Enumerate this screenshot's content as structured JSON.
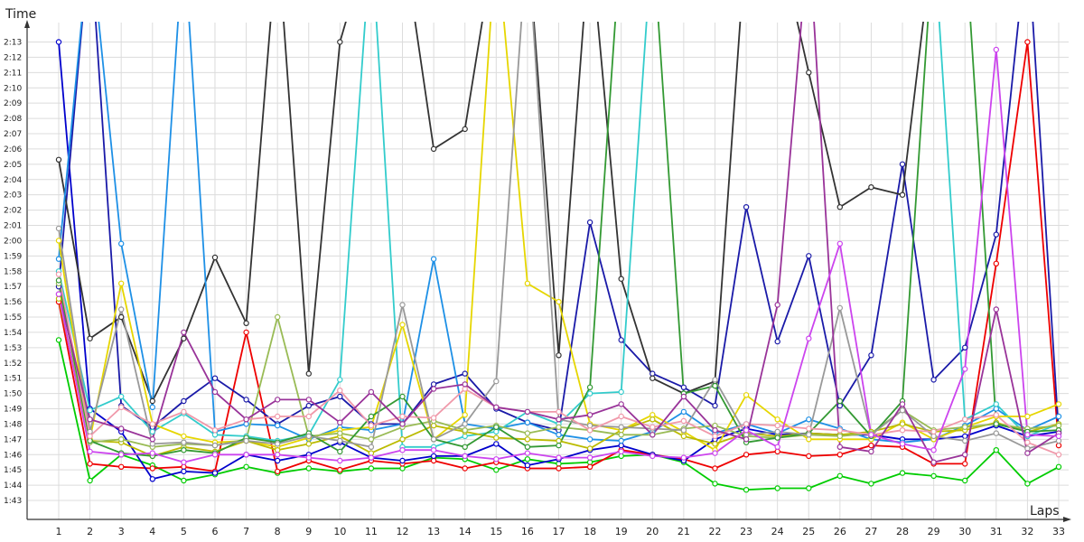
{
  "chart_data": {
    "type": "line",
    "xlabel": "Laps",
    "ylabel": "Time",
    "grid": true,
    "x_ticks": [
      "1",
      "2",
      "3",
      "4",
      "5",
      "6",
      "7",
      "8",
      "9",
      "10",
      "11",
      "12",
      "13",
      "14",
      "15",
      "16",
      "17",
      "18",
      "19",
      "20",
      "21",
      "22",
      "23",
      "24",
      "25",
      "26",
      "27",
      "28",
      "29",
      "30",
      "31",
      "32",
      "33"
    ],
    "y_ticks": [
      "1:43",
      "1:44",
      "1:45",
      "1:46",
      "1:47",
      "1:48",
      "1:49",
      "1:50",
      "1:51",
      "1:52",
      "1:53",
      "1:54",
      "1:55",
      "1:56",
      "1:57",
      "1:58",
      "1:59",
      "2:00",
      "2:01",
      "2:02",
      "2:03",
      "2:04",
      "2:05",
      "2:06",
      "2:07",
      "2:08",
      "2:09",
      "2:10",
      "2:11",
      "2:12",
      "2:13"
    ],
    "ylim_seconds": [
      103,
      135
    ],
    "x": [
      1,
      2,
      3,
      4,
      5,
      6,
      7,
      8,
      9,
      10,
      11,
      12,
      13,
      14,
      15,
      16,
      17,
      18,
      19,
      20,
      21,
      22,
      23,
      24,
      25,
      26,
      27,
      28,
      29,
      30,
      31,
      32,
      33
    ],
    "series": [
      {
        "color": "#00cc00",
        "values": [
          113.5,
          104.3,
          106.0,
          105.3,
          104.3,
          104.7,
          105.2,
          104.8,
          105.1,
          104.9,
          105.1,
          105.1,
          105.8,
          105.7,
          105.0,
          105.7,
          105.4,
          105.5,
          105.9,
          106.0,
          105.5,
          104.1,
          103.7,
          103.8,
          103.8,
          104.6,
          104.1,
          104.8,
          104.6,
          104.3,
          106.3,
          104.1,
          105.2
        ]
      },
      {
        "color": "#ee0000",
        "values": [
          116.0,
          105.4,
          105.2,
          105.1,
          105.2,
          104.9,
          114.0,
          104.9,
          105.6,
          105.0,
          105.6,
          105.4,
          105.6,
          105.1,
          105.5,
          105.1,
          105.1,
          105.2,
          106.3,
          106.0,
          105.7,
          105.1,
          106.0,
          106.2,
          105.9,
          106.0,
          106.6,
          106.5,
          105.4,
          105.4,
          118.5,
          133.0,
          106.6
        ]
      },
      {
        "color": "#0000cc",
        "values": [
          133.0,
          109.0,
          107.5,
          104.4,
          104.9,
          104.8,
          106.0,
          105.6,
          106.0,
          106.8,
          105.8,
          105.6,
          105.9,
          105.9,
          106.7,
          105.3,
          105.7,
          106.3,
          106.6,
          106.0,
          105.6,
          107.0,
          107.7,
          107.3,
          107.4,
          107.3,
          107.3,
          107.0,
          107.0,
          107.2,
          107.9,
          107.2,
          107.5
        ]
      },
      {
        "color": "#1a1aa8",
        "values": [
          117.0,
          140.0,
          109.2,
          107.8,
          109.5,
          111.0,
          109.6,
          108.0,
          109.2,
          109.8,
          108.0,
          108.0,
          110.6,
          111.3,
          109.0,
          108.1,
          107.6,
          121.2,
          113.5,
          111.3,
          110.4,
          109.2,
          122.2,
          113.4,
          119.0,
          109.2,
          112.5,
          125.0,
          110.9,
          113.0,
          120.4,
          140.0,
          107.4
        ]
      },
      {
        "color": "#333333",
        "values": [
          125.3,
          113.6,
          115.0,
          109.5,
          113.6,
          118.9,
          114.6,
          140.0,
          111.3,
          133.0,
          140.0,
          140.0,
          126.0,
          127.3,
          140.0,
          140.0,
          112.5,
          140.0,
          117.5,
          111.0,
          110.0,
          110.8,
          140.0,
          140.0,
          131.0,
          122.2,
          123.5,
          123.0,
          140.0,
          140.0,
          140.0,
          140.0,
          140.0
        ]
      },
      {
        "color": "#1e90e6",
        "values": [
          118.8,
          140.0,
          119.8,
          109.1,
          140.0,
          107.5,
          108.0,
          107.9,
          107.0,
          107.8,
          107.6,
          108.0,
          118.8,
          108.0,
          107.7,
          108.1,
          107.3,
          107.0,
          106.9,
          107.5,
          108.8,
          107.4,
          108.0,
          107.4,
          108.3,
          107.7,
          107.0,
          106.8,
          107.0,
          107.9,
          109.0,
          107.6,
          108.5
        ]
      },
      {
        "color": "#33cccc",
        "values": [
          118.0,
          108.9,
          109.8,
          107.5,
          108.7,
          107.3,
          107.2,
          106.9,
          107.3,
          110.9,
          140.0,
          106.5,
          106.5,
          107.2,
          107.5,
          108.8,
          108.0,
          110.0,
          110.1,
          140.0,
          140.0,
          140.0,
          140.0,
          140.0,
          140.0,
          140.0,
          140.0,
          140.0,
          140.0,
          108.3,
          109.3,
          107.2,
          108.0
        ]
      },
      {
        "color": "#e6d600",
        "values": [
          120.0,
          107.0,
          117.2,
          108.0,
          107.2,
          106.8,
          106.9,
          106.5,
          107.1,
          107.6,
          107.8,
          114.5,
          107.0,
          108.6,
          140.0,
          117.2,
          116.0,
          108.0,
          107.6,
          108.6,
          107.5,
          106.3,
          109.9,
          108.3,
          107.0,
          107.0,
          107.0,
          108.1,
          107.0,
          107.8,
          108.5,
          108.5,
          109.3
        ]
      },
      {
        "color": "#bbbb00",
        "values": [
          116.2,
          106.9,
          106.8,
          105.9,
          106.5,
          106.2,
          106.9,
          106.3,
          106.7,
          107.2,
          106.1,
          107.0,
          107.9,
          107.5,
          107.1,
          107.0,
          106.9,
          106.4,
          107.6,
          108.3,
          107.2,
          106.7,
          107.4,
          107.2,
          107.4,
          107.3,
          107.5,
          108.0,
          107.5,
          107.6,
          108.1,
          107.5,
          108.0
        ]
      },
      {
        "color": "#99bb55",
        "values": [
          117.2,
          106.8,
          107.0,
          106.5,
          106.7,
          106.6,
          107.0,
          115.0,
          107.2,
          107.4,
          107.0,
          107.8,
          108.2,
          107.6,
          107.9,
          107.4,
          107.8,
          107.6,
          107.3,
          107.3,
          107.7,
          107.9,
          107.2,
          107.1,
          107.3,
          107.2,
          107.4,
          108.9,
          107.6,
          107.8,
          108.0,
          107.7,
          107.9
        ]
      },
      {
        "color": "#339933",
        "values": [
          117.4,
          106.9,
          106.1,
          105.9,
          106.3,
          106.1,
          107.1,
          106.8,
          107.4,
          106.2,
          108.5,
          109.8,
          107.0,
          106.5,
          107.8,
          106.5,
          106.6,
          110.4,
          140.0,
          140.0,
          110.0,
          110.5,
          106.8,
          107.1,
          107.4,
          109.5,
          107.2,
          109.5,
          140.0,
          140.0,
          108.0,
          107.5,
          107.6
        ]
      },
      {
        "color": "#999999",
        "values": [
          120.8,
          107.5,
          115.5,
          106.7,
          106.8,
          106.6,
          106.9,
          106.7,
          107.2,
          106.9,
          106.5,
          115.8,
          107.0,
          108.0,
          110.8,
          140.0,
          108.3,
          107.9,
          107.8,
          107.7,
          107.6,
          110.9,
          107.3,
          107.5,
          107.3,
          115.6,
          107.3,
          108.9,
          107.2,
          106.9,
          107.4,
          106.4,
          106.9
        ]
      },
      {
        "color": "#f099aa",
        "values": [
          117.8,
          107.2,
          109.1,
          108.0,
          108.8,
          107.6,
          108.3,
          108.5,
          108.5,
          110.2,
          107.9,
          108.5,
          108.4,
          110.3,
          109.1,
          108.8,
          108.8,
          107.6,
          108.5,
          107.8,
          108.2,
          107.2,
          108.0,
          107.9,
          107.7,
          107.6,
          107.3,
          107.6,
          107.5,
          108.3,
          108.6,
          106.8,
          106.0
        ]
      },
      {
        "color": "#993399",
        "values": [
          116.5,
          108.3,
          107.7,
          107.0,
          114.0,
          110.1,
          108.3,
          109.6,
          109.6,
          108.1,
          110.1,
          108.0,
          110.3,
          110.6,
          109.1,
          108.8,
          108.3,
          108.6,
          109.3,
          107.3,
          109.8,
          107.6,
          107.0,
          115.8,
          140.0,
          106.5,
          106.2,
          109.3,
          105.5,
          106.0,
          115.5,
          106.1,
          107.4
        ]
      },
      {
        "color": "#cc44ee",
        "values": [
          116.5,
          106.2,
          106.0,
          106.1,
          105.5,
          106.0,
          106.0,
          106.0,
          105.8,
          105.6,
          105.8,
          106.3,
          106.3,
          105.9,
          105.7,
          106.1,
          105.8,
          105.8,
          106.2,
          105.9,
          105.8,
          106.1,
          107.6,
          106.5,
          113.6,
          119.8,
          107.3,
          106.7,
          106.3,
          111.6,
          132.5,
          107.3,
          107.2
        ]
      }
    ]
  }
}
